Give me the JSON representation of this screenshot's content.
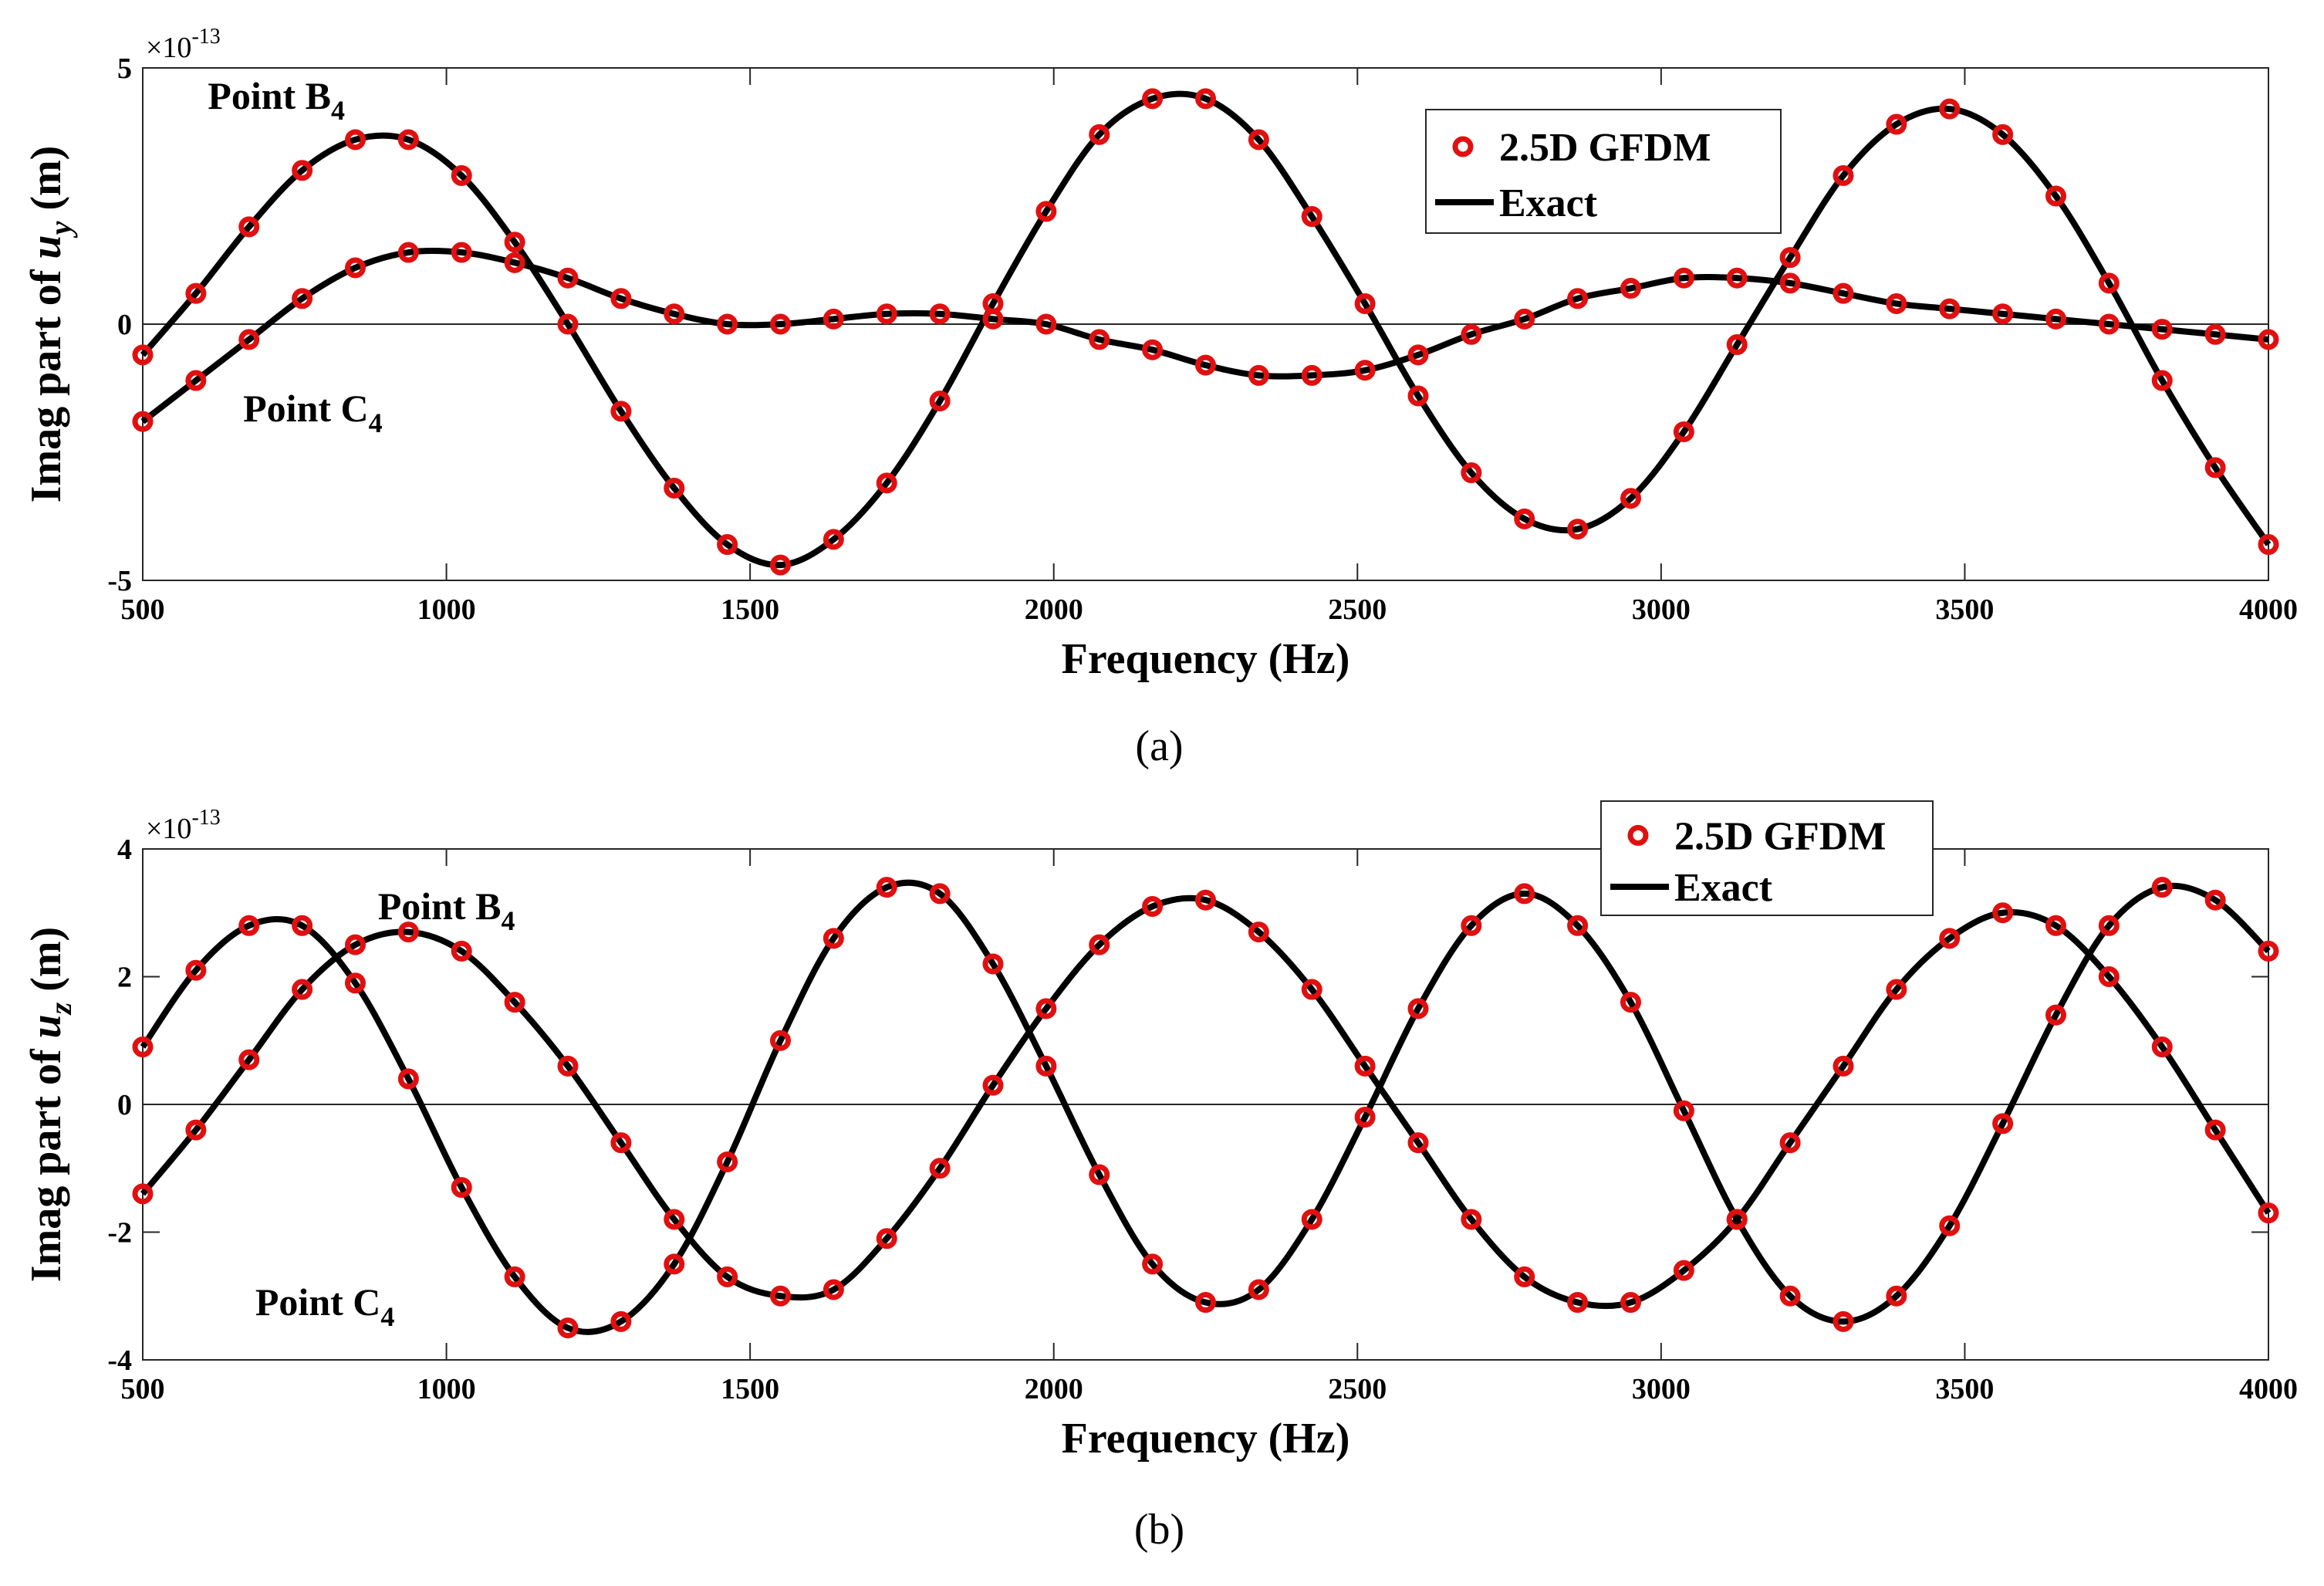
{
  "chart_data": [
    {
      "type": "line",
      "caption": "(a)",
      "xlabel": "Frequency (Hz)",
      "ylabel_prefix": "Imag part of ",
      "ylabel_var": "u",
      "ylabel_sub": "y",
      "ylabel_suffix": " (m)",
      "exponent_base": "×10",
      "exponent_power": "-13",
      "xlim": [
        500,
        4000
      ],
      "ylim": [
        -5,
        5
      ],
      "xticks": [
        500,
        1000,
        1500,
        2000,
        2500,
        3000,
        3500,
        4000
      ],
      "yticks": [
        -5,
        0,
        5
      ],
      "legend": {
        "position": "top-right",
        "markers_label": "2.5D GFDM",
        "line_label": "Exact"
      },
      "annotations": [
        {
          "text": "Point B",
          "sub": "4",
          "x": 720,
          "y": 4.2
        },
        {
          "text": "Point C",
          "sub": "4",
          "x": 780,
          "y": -1.9
        }
      ],
      "x": [
        500,
        587.5,
        675,
        762.5,
        850,
        937.5,
        1025,
        1112.5,
        1200,
        1287.5,
        1375,
        1462.5,
        1550,
        1637.5,
        1725,
        1812.5,
        1900,
        1987.5,
        2075,
        2162.5,
        2250,
        2337.5,
        2425,
        2512.5,
        2600,
        2687.5,
        2775,
        2862.5,
        2950,
        3037.5,
        3125,
        3212.5,
        3300,
        3387.5,
        3475,
        3562.5,
        3650,
        3737.5,
        3825,
        3912.5,
        4000
      ],
      "series": [
        {
          "name": "Point B4",
          "values": [
            -0.6,
            0.6,
            1.9,
            3.0,
            3.6,
            3.6,
            2.9,
            1.6,
            0.0,
            -1.7,
            -3.2,
            -4.3,
            -4.7,
            -4.2,
            -3.1,
            -1.5,
            0.4,
            2.2,
            3.7,
            4.4,
            4.4,
            3.6,
            2.1,
            0.4,
            -1.4,
            -2.9,
            -3.8,
            -4.0,
            -3.4,
            -2.1,
            -0.4,
            1.3,
            2.9,
            3.9,
            4.2,
            3.7,
            2.5,
            0.8,
            -1.1,
            -2.8,
            -4.3
          ]
        },
        {
          "name": "Point C4",
          "values": [
            -1.9,
            -1.1,
            -0.3,
            0.5,
            1.1,
            1.4,
            1.4,
            1.2,
            0.9,
            0.5,
            0.2,
            0.0,
            0.0,
            0.1,
            0.2,
            0.2,
            0.1,
            0.0,
            -0.3,
            -0.5,
            -0.8,
            -1.0,
            -1.0,
            -0.9,
            -0.6,
            -0.2,
            0.1,
            0.5,
            0.7,
            0.9,
            0.9,
            0.8,
            0.6,
            0.4,
            0.3,
            0.2,
            0.1,
            0.0,
            -0.1,
            -0.2,
            -0.3
          ]
        }
      ]
    },
    {
      "type": "line",
      "caption": "(b)",
      "xlabel": "Frequency (Hz)",
      "ylabel_prefix": "Imag part of ",
      "ylabel_var": "u",
      "ylabel_sub": "z",
      "ylabel_suffix": " (m)",
      "exponent_base": "×10",
      "exponent_power": "-13",
      "xlim": [
        500,
        4000
      ],
      "ylim": [
        -4,
        4
      ],
      "xticks": [
        500,
        1000,
        1500,
        2000,
        2500,
        3000,
        3500,
        4000
      ],
      "yticks": [
        -4,
        -2,
        0,
        2,
        4
      ],
      "legend": {
        "position": "top-right",
        "markers_label": "2.5D GFDM",
        "line_label": "Exact"
      },
      "annotations": [
        {
          "text": "Point B",
          "sub": "4",
          "x": 1000,
          "y": 2.9
        },
        {
          "text": "Point C",
          "sub": "4",
          "x": 800,
          "y": -3.3
        }
      ],
      "x": [
        500,
        587.5,
        675,
        762.5,
        850,
        937.5,
        1025,
        1112.5,
        1200,
        1287.5,
        1375,
        1462.5,
        1550,
        1637.5,
        1725,
        1812.5,
        1900,
        1987.5,
        2075,
        2162.5,
        2250,
        2337.5,
        2425,
        2512.5,
        2600,
        2687.5,
        2775,
        2862.5,
        2950,
        3037.5,
        3125,
        3212.5,
        3300,
        3387.5,
        3475,
        3562.5,
        3650,
        3737.5,
        3825,
        3912.5,
        4000
      ],
      "series": [
        {
          "name": "Point B4",
          "values": [
            -1.4,
            -0.4,
            0.7,
            1.8,
            2.5,
            2.7,
            2.4,
            1.6,
            0.6,
            -0.6,
            -1.8,
            -2.7,
            -3.0,
            -2.9,
            -2.1,
            -1.0,
            0.3,
            1.5,
            2.5,
            3.1,
            3.2,
            2.7,
            1.8,
            0.6,
            -0.6,
            -1.8,
            -2.7,
            -3.1,
            -3.1,
            -2.6,
            -1.8,
            -0.6,
            0.6,
            1.8,
            2.6,
            3.0,
            2.8,
            2.0,
            0.9,
            -0.4,
            -1.7
          ]
        },
        {
          "name": "Point C4",
          "values": [
            0.9,
            2.1,
            2.8,
            2.8,
            1.9,
            0.4,
            -1.3,
            -2.7,
            -3.5,
            -3.4,
            -2.5,
            -0.9,
            1.0,
            2.6,
            3.4,
            3.3,
            2.2,
            0.6,
            -1.1,
            -2.5,
            -3.1,
            -2.9,
            -1.8,
            -0.2,
            1.5,
            2.8,
            3.3,
            2.8,
            1.6,
            -0.1,
            -1.8,
            -3.0,
            -3.4,
            -3.0,
            -1.9,
            -0.3,
            1.4,
            2.8,
            3.4,
            3.2,
            2.4
          ]
        }
      ]
    }
  ]
}
